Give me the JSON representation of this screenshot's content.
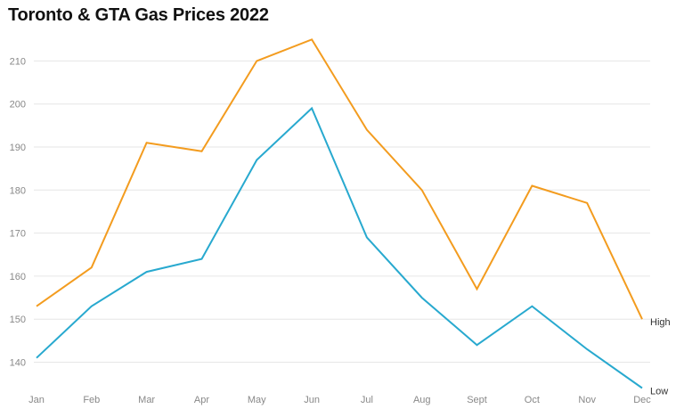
{
  "chart_data": {
    "type": "line",
    "title": "Toronto & GTA Gas Prices 2022",
    "categories": [
      "Jan",
      "Feb",
      "Mar",
      "Apr",
      "May",
      "Jun",
      "Jul",
      "Aug",
      "Sept",
      "Oct",
      "Nov",
      "Dec"
    ],
    "series": [
      {
        "name": "High",
        "color": "#f39c1f",
        "values": [
          153,
          162,
          191,
          189,
          210,
          215,
          194,
          180,
          157,
          181,
          177,
          150
        ]
      },
      {
        "name": "Low",
        "color": "#28a9cf",
        "values": [
          141,
          153,
          161,
          164,
          187,
          199,
          169,
          155,
          144,
          153,
          143,
          134
        ]
      }
    ],
    "yticks": [
      140,
      150,
      160,
      170,
      180,
      190,
      200,
      210
    ],
    "ylim": [
      134,
      216
    ],
    "grid": true,
    "legend": "line-end labels"
  }
}
